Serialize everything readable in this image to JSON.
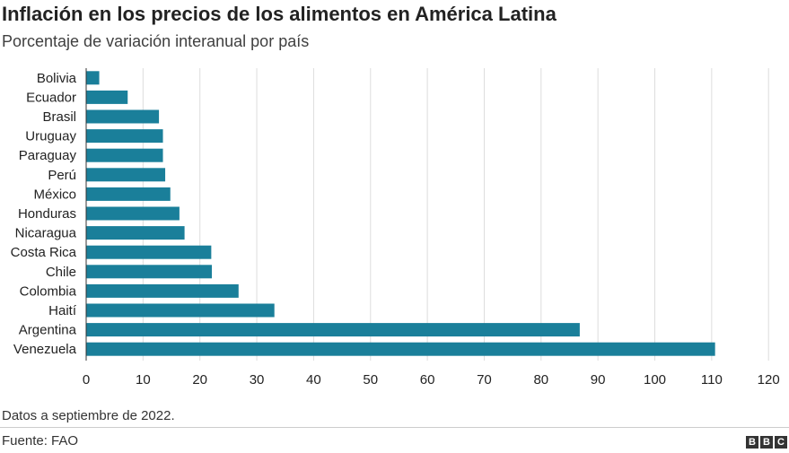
{
  "title": "Inflación en los precios de los alimentos en América Latina",
  "subtitle": "Porcentaje de variación interanual por país",
  "note": "Datos a septiembre de 2022.",
  "source": "Fuente: FAO",
  "logo_letters": [
    "B",
    "B",
    "C"
  ],
  "colors": {
    "bar": "#1a7f9a",
    "grid": "#dddddd",
    "text": "#222222"
  },
  "chart_data": {
    "type": "bar",
    "orientation": "horizontal",
    "categories": [
      "Bolivia",
      "Ecuador",
      "Brasil",
      "Uruguay",
      "Paraguay",
      "Perú",
      "México",
      "Honduras",
      "Nicaragua",
      "Costa Rica",
      "Chile",
      "Colombia",
      "Haití",
      "Argentina",
      "Venezuela"
    ],
    "values": [
      2.3,
      7.3,
      12.8,
      13.5,
      13.5,
      13.9,
      14.8,
      16.4,
      17.3,
      22.0,
      22.1,
      26.8,
      33.1,
      86.8,
      110.6
    ],
    "xticks": [
      0,
      10,
      20,
      30,
      40,
      50,
      60,
      70,
      80,
      90,
      100,
      110,
      120
    ],
    "xlim": [
      0,
      120
    ],
    "grid": true,
    "xlabel": "",
    "ylabel": ""
  }
}
